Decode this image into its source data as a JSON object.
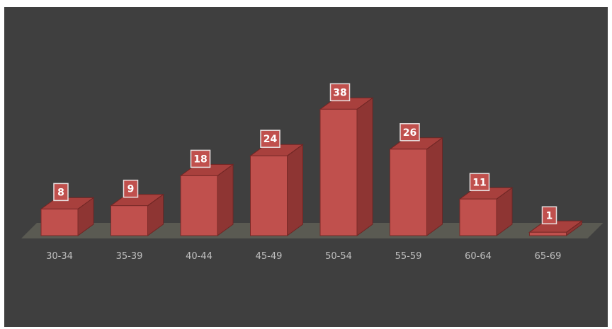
{
  "chart_data": {
    "type": "bar",
    "style": "3d",
    "categories": [
      "30-34",
      "35-39",
      "40-44",
      "45-49",
      "50-54",
      "55-59",
      "60-64",
      "65-69"
    ],
    "values": [
      8,
      9,
      18,
      24,
      38,
      26,
      11,
      1
    ],
    "title": "",
    "xlabel": "",
    "ylabel": "",
    "ylim": [
      0,
      38
    ],
    "grid": false,
    "legend": "none",
    "data_labels": true,
    "colors": {
      "background": "#3f3f3f",
      "bar_front": "#c0504d",
      "bar_top": "#a8403d",
      "bar_side": "#8e3533",
      "floor": "#5a5a52",
      "tick_text": "#bfbfbf",
      "label_box_fill": "#c0504d",
      "label_box_border": "#e8e0e0",
      "label_text": "#ffffff"
    }
  }
}
